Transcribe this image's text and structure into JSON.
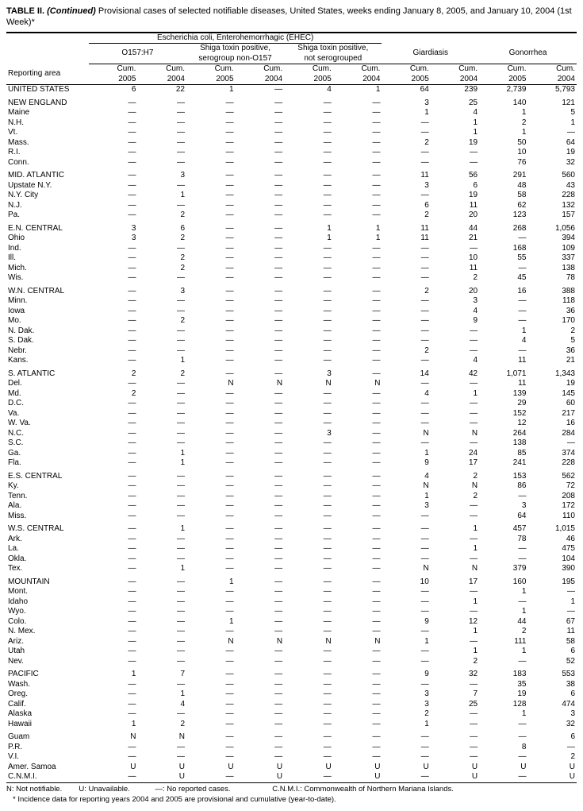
{
  "title_html": "TABLE II. <i>(Continued)</i> Provisional cases of selected notifiable diseases, United States, weeks ending January 8, 2005, and January 10, 2004 (1st Week)*",
  "header": {
    "ehec_group": "Escherichia coli, Enterohemorrhagic (EHEC)",
    "o157": "O157:H7",
    "stp_non": "Shiga toxin positive, serogroup non-O157",
    "stp_not": "Shiga toxin positive, not serogrouped",
    "giardiasis": "Giardiasis",
    "gonorrhea": "Gonorrhea",
    "cum2005": "Cum. 2005",
    "cum2004": "Cum. 2004",
    "reporting_area": "Reporting area"
  },
  "groups": [
    {
      "rows": [
        [
          "UNITED STATES",
          "6",
          "22",
          "1",
          "—",
          "4",
          "1",
          "64",
          "239",
          "2,739",
          "5,793"
        ]
      ]
    },
    {
      "rows": [
        [
          "NEW ENGLAND",
          "—",
          "—",
          "—",
          "—",
          "—",
          "—",
          "3",
          "25",
          "140",
          "121"
        ],
        [
          "Maine",
          "—",
          "—",
          "—",
          "—",
          "—",
          "—",
          "1",
          "4",
          "1",
          "5"
        ],
        [
          "N.H.",
          "—",
          "—",
          "—",
          "—",
          "—",
          "—",
          "—",
          "1",
          "2",
          "1"
        ],
        [
          "Vt.",
          "—",
          "—",
          "—",
          "—",
          "—",
          "—",
          "—",
          "1",
          "1",
          "—"
        ],
        [
          "Mass.",
          "—",
          "—",
          "—",
          "—",
          "—",
          "—",
          "2",
          "19",
          "50",
          "64"
        ],
        [
          "R.I.",
          "—",
          "—",
          "—",
          "—",
          "—",
          "—",
          "—",
          "—",
          "10",
          "19"
        ],
        [
          "Conn.",
          "—",
          "—",
          "—",
          "—",
          "—",
          "—",
          "—",
          "—",
          "76",
          "32"
        ]
      ]
    },
    {
      "rows": [
        [
          "MID. ATLANTIC",
          "—",
          "3",
          "—",
          "—",
          "—",
          "—",
          "11",
          "56",
          "291",
          "560"
        ],
        [
          "Upstate N.Y.",
          "—",
          "—",
          "—",
          "—",
          "—",
          "—",
          "3",
          "6",
          "48",
          "43"
        ],
        [
          "N.Y. City",
          "—",
          "1",
          "—",
          "—",
          "—",
          "—",
          "—",
          "19",
          "58",
          "228"
        ],
        [
          "N.J.",
          "—",
          "—",
          "—",
          "—",
          "—",
          "—",
          "6",
          "11",
          "62",
          "132"
        ],
        [
          "Pa.",
          "—",
          "2",
          "—",
          "—",
          "—",
          "—",
          "2",
          "20",
          "123",
          "157"
        ]
      ]
    },
    {
      "rows": [
        [
          "E.N. CENTRAL",
          "3",
          "6",
          "—",
          "—",
          "1",
          "1",
          "11",
          "44",
          "268",
          "1,056"
        ],
        [
          "Ohio",
          "3",
          "2",
          "—",
          "—",
          "1",
          "1",
          "11",
          "21",
          "—",
          "394"
        ],
        [
          "Ind.",
          "—",
          "—",
          "—",
          "—",
          "—",
          "—",
          "—",
          "—",
          "168",
          "109"
        ],
        [
          "Ill.",
          "—",
          "2",
          "—",
          "—",
          "—",
          "—",
          "—",
          "10",
          "55",
          "337"
        ],
        [
          "Mich.",
          "—",
          "2",
          "—",
          "—",
          "—",
          "—",
          "—",
          "11",
          "—",
          "138"
        ],
        [
          "Wis.",
          "—",
          "—",
          "—",
          "—",
          "—",
          "—",
          "—",
          "2",
          "45",
          "78"
        ]
      ]
    },
    {
      "rows": [
        [
          "W.N. CENTRAL",
          "—",
          "3",
          "—",
          "—",
          "—",
          "—",
          "2",
          "20",
          "16",
          "388"
        ],
        [
          "Minn.",
          "—",
          "—",
          "—",
          "—",
          "—",
          "—",
          "—",
          "3",
          "—",
          "118"
        ],
        [
          "Iowa",
          "—",
          "—",
          "—",
          "—",
          "—",
          "—",
          "—",
          "4",
          "—",
          "36"
        ],
        [
          "Mo.",
          "—",
          "2",
          "—",
          "—",
          "—",
          "—",
          "—",
          "9",
          "—",
          "170"
        ],
        [
          "N. Dak.",
          "—",
          "—",
          "—",
          "—",
          "—",
          "—",
          "—",
          "—",
          "1",
          "2"
        ],
        [
          "S. Dak.",
          "—",
          "—",
          "—",
          "—",
          "—",
          "—",
          "—",
          "—",
          "4",
          "5"
        ],
        [
          "Nebr.",
          "—",
          "—",
          "—",
          "—",
          "—",
          "—",
          "2",
          "—",
          "—",
          "36"
        ],
        [
          "Kans.",
          "—",
          "1",
          "—",
          "—",
          "—",
          "—",
          "—",
          "4",
          "11",
          "21"
        ]
      ]
    },
    {
      "rows": [
        [
          "S. ATLANTIC",
          "2",
          "2",
          "—",
          "—",
          "3",
          "—",
          "14",
          "42",
          "1,071",
          "1,343"
        ],
        [
          "Del.",
          "—",
          "—",
          "N",
          "N",
          "N",
          "N",
          "—",
          "—",
          "11",
          "19"
        ],
        [
          "Md.",
          "2",
          "—",
          "—",
          "—",
          "—",
          "—",
          "4",
          "1",
          "139",
          "145"
        ],
        [
          "D.C.",
          "—",
          "—",
          "—",
          "—",
          "—",
          "—",
          "—",
          "—",
          "29",
          "60"
        ],
        [
          "Va.",
          "—",
          "—",
          "—",
          "—",
          "—",
          "—",
          "—",
          "—",
          "152",
          "217"
        ],
        [
          "W. Va.",
          "—",
          "—",
          "—",
          "—",
          "—",
          "—",
          "—",
          "—",
          "12",
          "16"
        ],
        [
          "N.C.",
          "—",
          "—",
          "—",
          "—",
          "3",
          "—",
          "N",
          "N",
          "264",
          "284"
        ],
        [
          "S.C.",
          "—",
          "—",
          "—",
          "—",
          "—",
          "—",
          "—",
          "—",
          "138",
          "—"
        ],
        [
          "Ga.",
          "—",
          "1",
          "—",
          "—",
          "—",
          "—",
          "1",
          "24",
          "85",
          "374"
        ],
        [
          "Fla.",
          "—",
          "1",
          "—",
          "—",
          "—",
          "—",
          "9",
          "17",
          "241",
          "228"
        ]
      ]
    },
    {
      "rows": [
        [
          "E.S. CENTRAL",
          "—",
          "—",
          "—",
          "—",
          "—",
          "—",
          "4",
          "2",
          "153",
          "562"
        ],
        [
          "Ky.",
          "—",
          "—",
          "—",
          "—",
          "—",
          "—",
          "N",
          "N",
          "86",
          "72"
        ],
        [
          "Tenn.",
          "—",
          "—",
          "—",
          "—",
          "—",
          "—",
          "1",
          "2",
          "—",
          "208"
        ],
        [
          "Ala.",
          "—",
          "—",
          "—",
          "—",
          "—",
          "—",
          "3",
          "—",
          "3",
          "172"
        ],
        [
          "Miss.",
          "—",
          "—",
          "—",
          "—",
          "—",
          "—",
          "—",
          "—",
          "64",
          "110"
        ]
      ]
    },
    {
      "rows": [
        [
          "W.S. CENTRAL",
          "—",
          "1",
          "—",
          "—",
          "—",
          "—",
          "—",
          "1",
          "457",
          "1,015"
        ],
        [
          "Ark.",
          "—",
          "—",
          "—",
          "—",
          "—",
          "—",
          "—",
          "—",
          "78",
          "46"
        ],
        [
          "La.",
          "—",
          "—",
          "—",
          "—",
          "—",
          "—",
          "—",
          "1",
          "—",
          "475"
        ],
        [
          "Okla.",
          "—",
          "—",
          "—",
          "—",
          "—",
          "—",
          "—",
          "—",
          "—",
          "104"
        ],
        [
          "Tex.",
          "—",
          "1",
          "—",
          "—",
          "—",
          "—",
          "N",
          "N",
          "379",
          "390"
        ]
      ]
    },
    {
      "rows": [
        [
          "MOUNTAIN",
          "—",
          "—",
          "1",
          "—",
          "—",
          "—",
          "10",
          "17",
          "160",
          "195"
        ],
        [
          "Mont.",
          "—",
          "—",
          "—",
          "—",
          "—",
          "—",
          "—",
          "—",
          "1",
          "—"
        ],
        [
          "Idaho",
          "—",
          "—",
          "—",
          "—",
          "—",
          "—",
          "—",
          "1",
          "—",
          "1"
        ],
        [
          "Wyo.",
          "—",
          "—",
          "—",
          "—",
          "—",
          "—",
          "—",
          "—",
          "1",
          "—"
        ],
        [
          "Colo.",
          "—",
          "—",
          "1",
          "—",
          "—",
          "—",
          "9",
          "12",
          "44",
          "67"
        ],
        [
          "N. Mex.",
          "—",
          "—",
          "—",
          "—",
          "—",
          "—",
          "—",
          "1",
          "2",
          "11"
        ],
        [
          "Ariz.",
          "—",
          "—",
          "N",
          "N",
          "N",
          "N",
          "1",
          "—",
          "111",
          "58"
        ],
        [
          "Utah",
          "—",
          "—",
          "—",
          "—",
          "—",
          "—",
          "—",
          "1",
          "1",
          "6"
        ],
        [
          "Nev.",
          "—",
          "—",
          "—",
          "—",
          "—",
          "—",
          "—",
          "2",
          "—",
          "52"
        ]
      ]
    },
    {
      "rows": [
        [
          "PACIFIC",
          "1",
          "7",
          "—",
          "—",
          "—",
          "—",
          "9",
          "32",
          "183",
          "553"
        ],
        [
          "Wash.",
          "—",
          "—",
          "—",
          "—",
          "—",
          "—",
          "—",
          "—",
          "35",
          "38"
        ],
        [
          "Oreg.",
          "—",
          "1",
          "—",
          "—",
          "—",
          "—",
          "3",
          "7",
          "19",
          "6"
        ],
        [
          "Calif.",
          "—",
          "4",
          "—",
          "—",
          "—",
          "—",
          "3",
          "25",
          "128",
          "474"
        ],
        [
          "Alaska",
          "—",
          "—",
          "—",
          "—",
          "—",
          "—",
          "2",
          "—",
          "1",
          "3"
        ],
        [
          "Hawaii",
          "1",
          "2",
          "—",
          "—",
          "—",
          "—",
          "1",
          "—",
          "—",
          "32"
        ]
      ]
    },
    {
      "rows": [
        [
          "Guam",
          "N",
          "N",
          "—",
          "—",
          "—",
          "—",
          "—",
          "—",
          "—",
          "6"
        ],
        [
          "P.R.",
          "—",
          "—",
          "—",
          "—",
          "—",
          "—",
          "—",
          "—",
          "8",
          "—"
        ],
        [
          "V.I.",
          "—",
          "—",
          "—",
          "—",
          "—",
          "—",
          "—",
          "—",
          "—",
          "2"
        ],
        [
          "Amer. Samoa",
          "U",
          "U",
          "U",
          "U",
          "U",
          "U",
          "U",
          "U",
          "U",
          "U"
        ],
        [
          "C.N.M.I.",
          "—",
          "U",
          "—",
          "U",
          "—",
          "U",
          "—",
          "U",
          "—",
          "U"
        ]
      ]
    }
  ],
  "footnotes": [
    "N: Not notifiable.        U: Unavailable.            —: No reported cases.                    C.N.M.I.: Commonwealth of Northern Mariana Islands.",
    "* Incidence data for reporting years 2004 and 2005 are provisional and cumulative (year-to-date)."
  ]
}
